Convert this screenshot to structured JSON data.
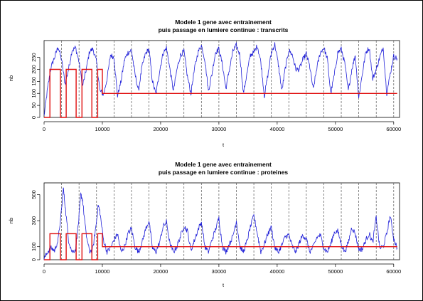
{
  "chart_data": [
    {
      "type": "line",
      "title": "Modele 1 gene avec entrainement",
      "subtitle": "puis passage en lumiere continue : transcrits",
      "xlabel": "t",
      "ylabel": "nb",
      "xlim": [
        0,
        61000
      ],
      "ylim": [
        0,
        320
      ],
      "xticks": [
        0,
        10000,
        20000,
        30000,
        40000,
        50000,
        60000
      ],
      "yticks": [
        0,
        50,
        100,
        150,
        200,
        250
      ],
      "grid": false,
      "colors": {
        "noisy": "#2020d8",
        "forcing": "#e01010",
        "markers": "#555555"
      },
      "markers_x": [
        3000,
        6000,
        9000,
        12000,
        15000,
        18000,
        21000,
        24000,
        27000,
        30000,
        33000,
        36000,
        39000,
        42000,
        45000,
        48000,
        51000,
        54000,
        57000,
        60000
      ],
      "series": [
        {
          "x": [
            0,
            600,
            1200,
            1800,
            2400,
            3000,
            3600,
            4200,
            4800,
            5400,
            6000,
            6600,
            7200,
            7800,
            8400,
            9000,
            9600,
            10200,
            10800,
            11400,
            12000,
            12600,
            13200,
            13800,
            14400,
            15000,
            15600,
            16200,
            16800,
            17400,
            18000,
            18600,
            19200,
            19800,
            20400,
            21000,
            21600,
            22200,
            22800,
            23400,
            24000,
            24600,
            25200,
            25800,
            26400,
            27000,
            27600,
            28200,
            28800,
            29400,
            30000,
            30600,
            31200,
            31800,
            32400,
            33000,
            33600,
            34200,
            34800,
            35400,
            36000,
            36600,
            37200,
            37800,
            38400,
            39000,
            39600,
            40200,
            40800,
            41400,
            42000,
            42600,
            43200,
            43800,
            44400,
            45000,
            45600,
            46200,
            46800,
            47400,
            48000,
            48600,
            49200,
            49800,
            50400,
            51000,
            51600,
            52200,
            52800,
            53400,
            54000,
            54600,
            55200,
            55800,
            56400,
            57000,
            57600,
            58200,
            58800,
            59400,
            60000,
            60600
          ],
          "values": [
            5,
            120,
            210,
            250,
            295,
            240,
            140,
            200,
            280,
            290,
            230,
            130,
            195,
            275,
            285,
            230,
            110,
            95,
            160,
            260,
            250,
            90,
            150,
            240,
            270,
            280,
            180,
            110,
            210,
            265,
            285,
            150,
            95,
            190,
            265,
            290,
            200,
            110,
            200,
            260,
            275,
            170,
            100,
            200,
            270,
            300,
            240,
            110,
            180,
            270,
            285,
            220,
            120,
            200,
            275,
            300,
            260,
            100,
            180,
            260,
            270,
            300,
            230,
            90,
            175,
            270,
            305,
            220,
            110,
            205,
            280,
            260,
            200,
            200,
            240,
            265,
            210,
            115,
            205,
            270,
            290,
            245,
            100,
            175,
            270,
            285,
            225,
            110,
            200,
            260,
            80,
            180,
            270,
            290,
            160,
            200,
            250,
            290,
            100,
            180,
            255,
            245
          ]
        },
        {
          "x": [
            0,
            1000,
            1000,
            2800,
            2800,
            3800,
            3800,
            5500,
            5500,
            6500,
            6500,
            8200,
            8200,
            9200,
            9200,
            10000,
            10000,
            60600
          ],
          "values": [
            0,
            0,
            200,
            200,
            0,
            0,
            200,
            200,
            0,
            0,
            200,
            200,
            0,
            0,
            200,
            200,
            100,
            100
          ]
        }
      ]
    },
    {
      "type": "line",
      "title": "Modele 1 gene avec entrainement",
      "subtitle": "puis passage en lumiere continue : proteines",
      "xlabel": "t",
      "ylabel": "nb",
      "xlim": [
        0,
        61000
      ],
      "ylim": [
        0,
        590
      ],
      "xticks": [
        0,
        10000,
        20000,
        30000,
        40000,
        50000,
        60000
      ],
      "yticks": [
        0,
        100,
        300,
        500
      ],
      "grid": false,
      "colors": {
        "noisy": "#2020d8",
        "forcing": "#e01010",
        "markers": "#555555"
      },
      "markers_x": [
        3000,
        6000,
        9000,
        12000,
        15000,
        18000,
        21000,
        24000,
        27000,
        30000,
        33000,
        36000,
        39000,
        42000,
        45000,
        48000,
        51000,
        54000,
        57000,
        60000
      ],
      "series": [
        {
          "x": [
            0,
            600,
            1200,
            1800,
            2400,
            3000,
            3300,
            3600,
            4200,
            4800,
            5400,
            5900,
            6300,
            6600,
            7200,
            7800,
            8400,
            8900,
            9300,
            9600,
            10200,
            10800,
            11400,
            12000,
            12600,
            13200,
            13800,
            14400,
            15000,
            15600,
            16200,
            16800,
            17400,
            18000,
            18600,
            19200,
            19800,
            20400,
            21000,
            21600,
            22200,
            22800,
            23400,
            24000,
            24600,
            25200,
            25800,
            26400,
            27000,
            27600,
            28200,
            28800,
            29400,
            30000,
            30600,
            31200,
            31800,
            32400,
            33000,
            33600,
            34200,
            34800,
            35400,
            36000,
            36600,
            37200,
            37800,
            38400,
            39000,
            39600,
            40200,
            40800,
            41400,
            42000,
            42600,
            43200,
            43800,
            44400,
            45000,
            45600,
            46200,
            46800,
            47400,
            48000,
            48600,
            49200,
            49800,
            50400,
            51000,
            51600,
            52200,
            52800,
            53400,
            54000,
            54600,
            55200,
            55800,
            56400,
            57000,
            57600,
            58200,
            58800,
            59400,
            60000,
            60600
          ],
          "values": [
            5,
            60,
            90,
            70,
            150,
            380,
            550,
            420,
            150,
            60,
            80,
            280,
            500,
            460,
            200,
            60,
            90,
            260,
            420,
            360,
            150,
            60,
            90,
            150,
            200,
            60,
            100,
            200,
            240,
            100,
            60,
            130,
            230,
            300,
            90,
            60,
            130,
            250,
            290,
            120,
            60,
            100,
            180,
            260,
            220,
            70,
            150,
            230,
            290,
            100,
            60,
            150,
            230,
            320,
            100,
            60,
            120,
            180,
            300,
            100,
            60,
            140,
            250,
            340,
            200,
            60,
            120,
            200,
            250,
            90,
            60,
            110,
            180,
            190,
            100,
            60,
            130,
            190,
            160,
            60,
            100,
            170,
            190,
            90,
            60,
            120,
            210,
            220,
            120,
            60,
            130,
            250,
            200,
            80,
            80,
            150,
            200,
            130,
            330,
            90,
            100,
            200,
            340,
            160,
            90
          ]
        },
        {
          "x": [
            0,
            1000,
            1000,
            2800,
            2800,
            3800,
            3800,
            5500,
            5500,
            6500,
            6500,
            8200,
            8200,
            9200,
            9200,
            10000,
            10000,
            60600
          ],
          "values": [
            0,
            0,
            200,
            200,
            0,
            0,
            200,
            200,
            0,
            0,
            200,
            200,
            0,
            0,
            200,
            200,
            100,
            100
          ]
        }
      ]
    }
  ]
}
